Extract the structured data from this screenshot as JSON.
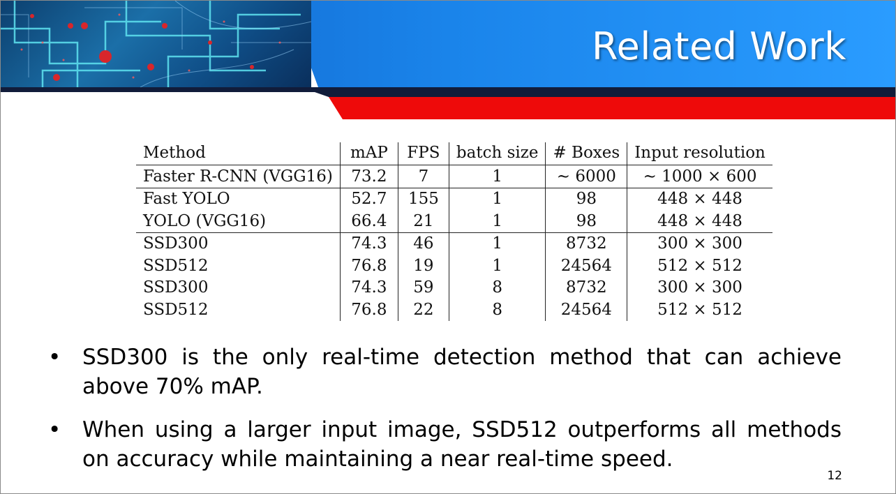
{
  "slide": {
    "title": "Related Work",
    "page_number": "12"
  },
  "table": {
    "headers": [
      "Method",
      "mAP",
      "FPS",
      "batch size",
      "# Boxes",
      "Input resolution"
    ],
    "rows": [
      [
        "Faster R-CNN (VGG16)",
        "73.2",
        "7",
        "1",
        "∼ 6000",
        "∼ 1000 × 600"
      ],
      [
        "Fast YOLO",
        "52.7",
        "155",
        "1",
        "98",
        "448 × 448"
      ],
      [
        "YOLO (VGG16)",
        "66.4",
        "21",
        "1",
        "98",
        "448 × 448"
      ],
      [
        "SSD300",
        "74.3",
        "46",
        "1",
        "8732",
        "300 × 300"
      ],
      [
        "SSD512",
        "76.8",
        "19",
        "1",
        "24564",
        "512 × 512"
      ],
      [
        "SSD300",
        "74.3",
        "59",
        "8",
        "8732",
        "300 × 300"
      ],
      [
        "SSD512",
        "76.8",
        "22",
        "8",
        "24564",
        "512 × 512"
      ]
    ]
  },
  "bullets": [
    "SSD300 is the only real-time detection method that can achieve above 70% mAP.",
    "When using a larger input image, SSD512 outperforms all methods on accuracy while maintaining a near real-time speed."
  ],
  "colors": {
    "header_blue": "#1a84ea",
    "header_dark": "#111c3a",
    "header_red": "#ee0a0a"
  },
  "icons": {
    "bullet": "•"
  }
}
